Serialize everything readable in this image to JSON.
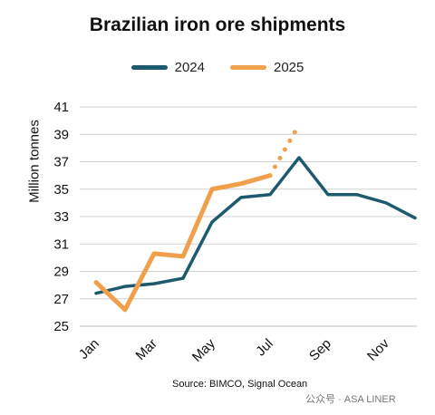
{
  "chart_data": {
    "type": "line",
    "title": "Brazilian iron ore shipments",
    "ylabel": "Million tonnes",
    "xlabel": "",
    "ylim": [
      25,
      41
    ],
    "yticks": [
      25,
      27,
      29,
      31,
      33,
      35,
      37,
      39,
      41
    ],
    "x": [
      "Jan",
      "Feb",
      "Mar",
      "Apr",
      "May",
      "Jun",
      "Jul",
      "Aug",
      "Sep",
      "Oct",
      "Nov",
      "Dec"
    ],
    "xtick_labels": [
      "Jan",
      "Mar",
      "May",
      "Jul",
      "Sep",
      "Nov"
    ],
    "grid": true,
    "legend_position": "top-center",
    "series": [
      {
        "name": "2024",
        "color": "#1d5a6e",
        "values": [
          27.4,
          27.9,
          28.1,
          28.5,
          32.6,
          34.4,
          34.6,
          37.3,
          34.6,
          34.6,
          34.0,
          32.9
        ]
      },
      {
        "name": "2025",
        "color": "#f0a04b",
        "values": [
          28.2,
          26.2,
          30.3,
          30.1,
          35.0,
          35.4,
          36.0,
          null,
          null,
          null,
          null,
          null
        ],
        "projection": {
          "x": [
            "Jul",
            "Aug"
          ],
          "values": [
            36.0,
            39.7
          ]
        }
      }
    ],
    "source": "Source: BIMCO, Signal Ocean"
  },
  "watermark": "公众号 · ASA LINER"
}
